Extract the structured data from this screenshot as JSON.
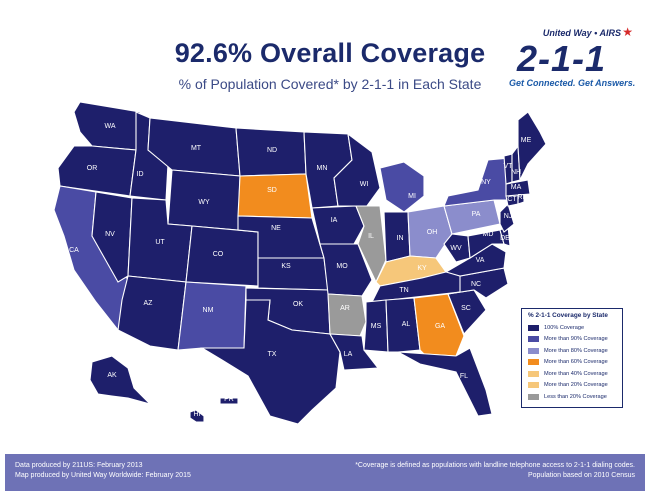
{
  "header": {
    "title": "92.6% Overall Coverage",
    "subtitle": "% of Population Covered* by 2-1-1 in Each State"
  },
  "logo": {
    "org": "United Way • AIRS",
    "number": "2-1-1",
    "tagline": "Get Connected. Get Answers."
  },
  "colors": {
    "full": "#1e1f6b",
    "over90": "#4a4ba4",
    "over80": "#8b8dcc",
    "over60": "#f28c1e",
    "over40": "#f6c77a",
    "under20": "#9a9a9a",
    "water": "#ffffff"
  },
  "states": [
    {
      "abbr": "WA",
      "label": "WA",
      "category": "full"
    },
    {
      "abbr": "OR",
      "label": "OR",
      "category": "full"
    },
    {
      "abbr": "CA",
      "label": "CA",
      "category": "over90"
    },
    {
      "abbr": "NV",
      "label": "NV",
      "category": "full"
    },
    {
      "abbr": "ID",
      "label": "ID",
      "category": "full"
    },
    {
      "abbr": "MT",
      "label": "MT",
      "category": "full"
    },
    {
      "abbr": "WY",
      "label": "WY",
      "category": "full"
    },
    {
      "abbr": "UT",
      "label": "UT",
      "category": "full"
    },
    {
      "abbr": "AZ",
      "label": "AZ",
      "category": "full"
    },
    {
      "abbr": "CO",
      "label": "CO",
      "category": "full"
    },
    {
      "abbr": "NM",
      "label": "NM",
      "category": "over90"
    },
    {
      "abbr": "ND",
      "label": "ND",
      "category": "full"
    },
    {
      "abbr": "SD",
      "label": "SD",
      "category": "over60"
    },
    {
      "abbr": "NE",
      "label": "NE",
      "category": "full"
    },
    {
      "abbr": "KS",
      "label": "KS",
      "category": "full"
    },
    {
      "abbr": "OK",
      "label": "OK",
      "category": "full"
    },
    {
      "abbr": "TX",
      "label": "TX",
      "category": "full"
    },
    {
      "abbr": "MN",
      "label": "MN",
      "category": "full"
    },
    {
      "abbr": "IA",
      "label": "IA",
      "category": "full"
    },
    {
      "abbr": "MO",
      "label": "MO",
      "category": "full"
    },
    {
      "abbr": "AR",
      "label": "AR",
      "category": "under20"
    },
    {
      "abbr": "LA",
      "label": "LA",
      "category": "full"
    },
    {
      "abbr": "WI",
      "label": "WI",
      "category": "full"
    },
    {
      "abbr": "IL",
      "label": "IL",
      "category": "under20"
    },
    {
      "abbr": "MI",
      "label": "MI",
      "category": "over90"
    },
    {
      "abbr": "IN",
      "label": "IN",
      "category": "full"
    },
    {
      "abbr": "OH",
      "label": "OH",
      "category": "over80"
    },
    {
      "abbr": "KY",
      "label": "KY",
      "category": "over40"
    },
    {
      "abbr": "TN",
      "label": "TN",
      "category": "full"
    },
    {
      "abbr": "MS",
      "label": "MS",
      "category": "full"
    },
    {
      "abbr": "AL",
      "label": "AL",
      "category": "full"
    },
    {
      "abbr": "GA",
      "label": "GA",
      "category": "over60"
    },
    {
      "abbr": "FL",
      "label": "FL",
      "category": "full"
    },
    {
      "abbr": "SC",
      "label": "SC",
      "category": "full"
    },
    {
      "abbr": "NC",
      "label": "NC",
      "category": "full"
    },
    {
      "abbr": "VA",
      "label": "VA",
      "category": "full"
    },
    {
      "abbr": "WV",
      "label": "WV",
      "category": "full"
    },
    {
      "abbr": "PA",
      "label": "PA",
      "category": "over80"
    },
    {
      "abbr": "NY",
      "label": "NY",
      "category": "over90"
    },
    {
      "abbr": "MD",
      "label": "MD",
      "category": "full"
    },
    {
      "abbr": "DE",
      "label": "DE",
      "category": "full"
    },
    {
      "abbr": "NJ",
      "label": "NJ",
      "category": "full"
    },
    {
      "abbr": "CT",
      "label": "CT",
      "category": "full"
    },
    {
      "abbr": "RI",
      "label": "RI",
      "category": "full"
    },
    {
      "abbr": "MA",
      "label": "MA",
      "category": "full"
    },
    {
      "abbr": "VT",
      "label": "VT",
      "category": "full"
    },
    {
      "abbr": "NH",
      "label": "NH",
      "category": "full"
    },
    {
      "abbr": "ME",
      "label": "ME",
      "category": "full"
    },
    {
      "abbr": "AK",
      "label": "AK",
      "category": "full"
    },
    {
      "abbr": "HI",
      "label": "HI",
      "category": "full"
    },
    {
      "abbr": "PR",
      "label": "PR",
      "category": "full"
    }
  ],
  "legend": {
    "title": "% 2-1-1 Coverage by State",
    "items": [
      {
        "label": "100% Coverage",
        "color": "#1e1f6b"
      },
      {
        "label": "More than 90% Coverage",
        "color": "#4a4ba4"
      },
      {
        "label": "More than 80% Coverage",
        "color": "#8b8dcc"
      },
      {
        "label": "More than 60% Coverage",
        "color": "#f28c1e"
      },
      {
        "label": "More than 40% Coverage",
        "color": "#f6c77a"
      },
      {
        "label": "More than 20% Coverage",
        "color": "#f6c77a"
      },
      {
        "label": "Less than 20% Coverage",
        "color": "#9a9a9a"
      }
    ]
  },
  "footer": {
    "left_line1": "Data produced by 211US: February 2013",
    "left_line2": "Map produced by United Way Worldwide: February 2015",
    "right_line1": "*Coverage is defined as populations with landline telephone access to 2-1-1 dialing codes.",
    "right_line2": "Population based on 2010 Census"
  }
}
